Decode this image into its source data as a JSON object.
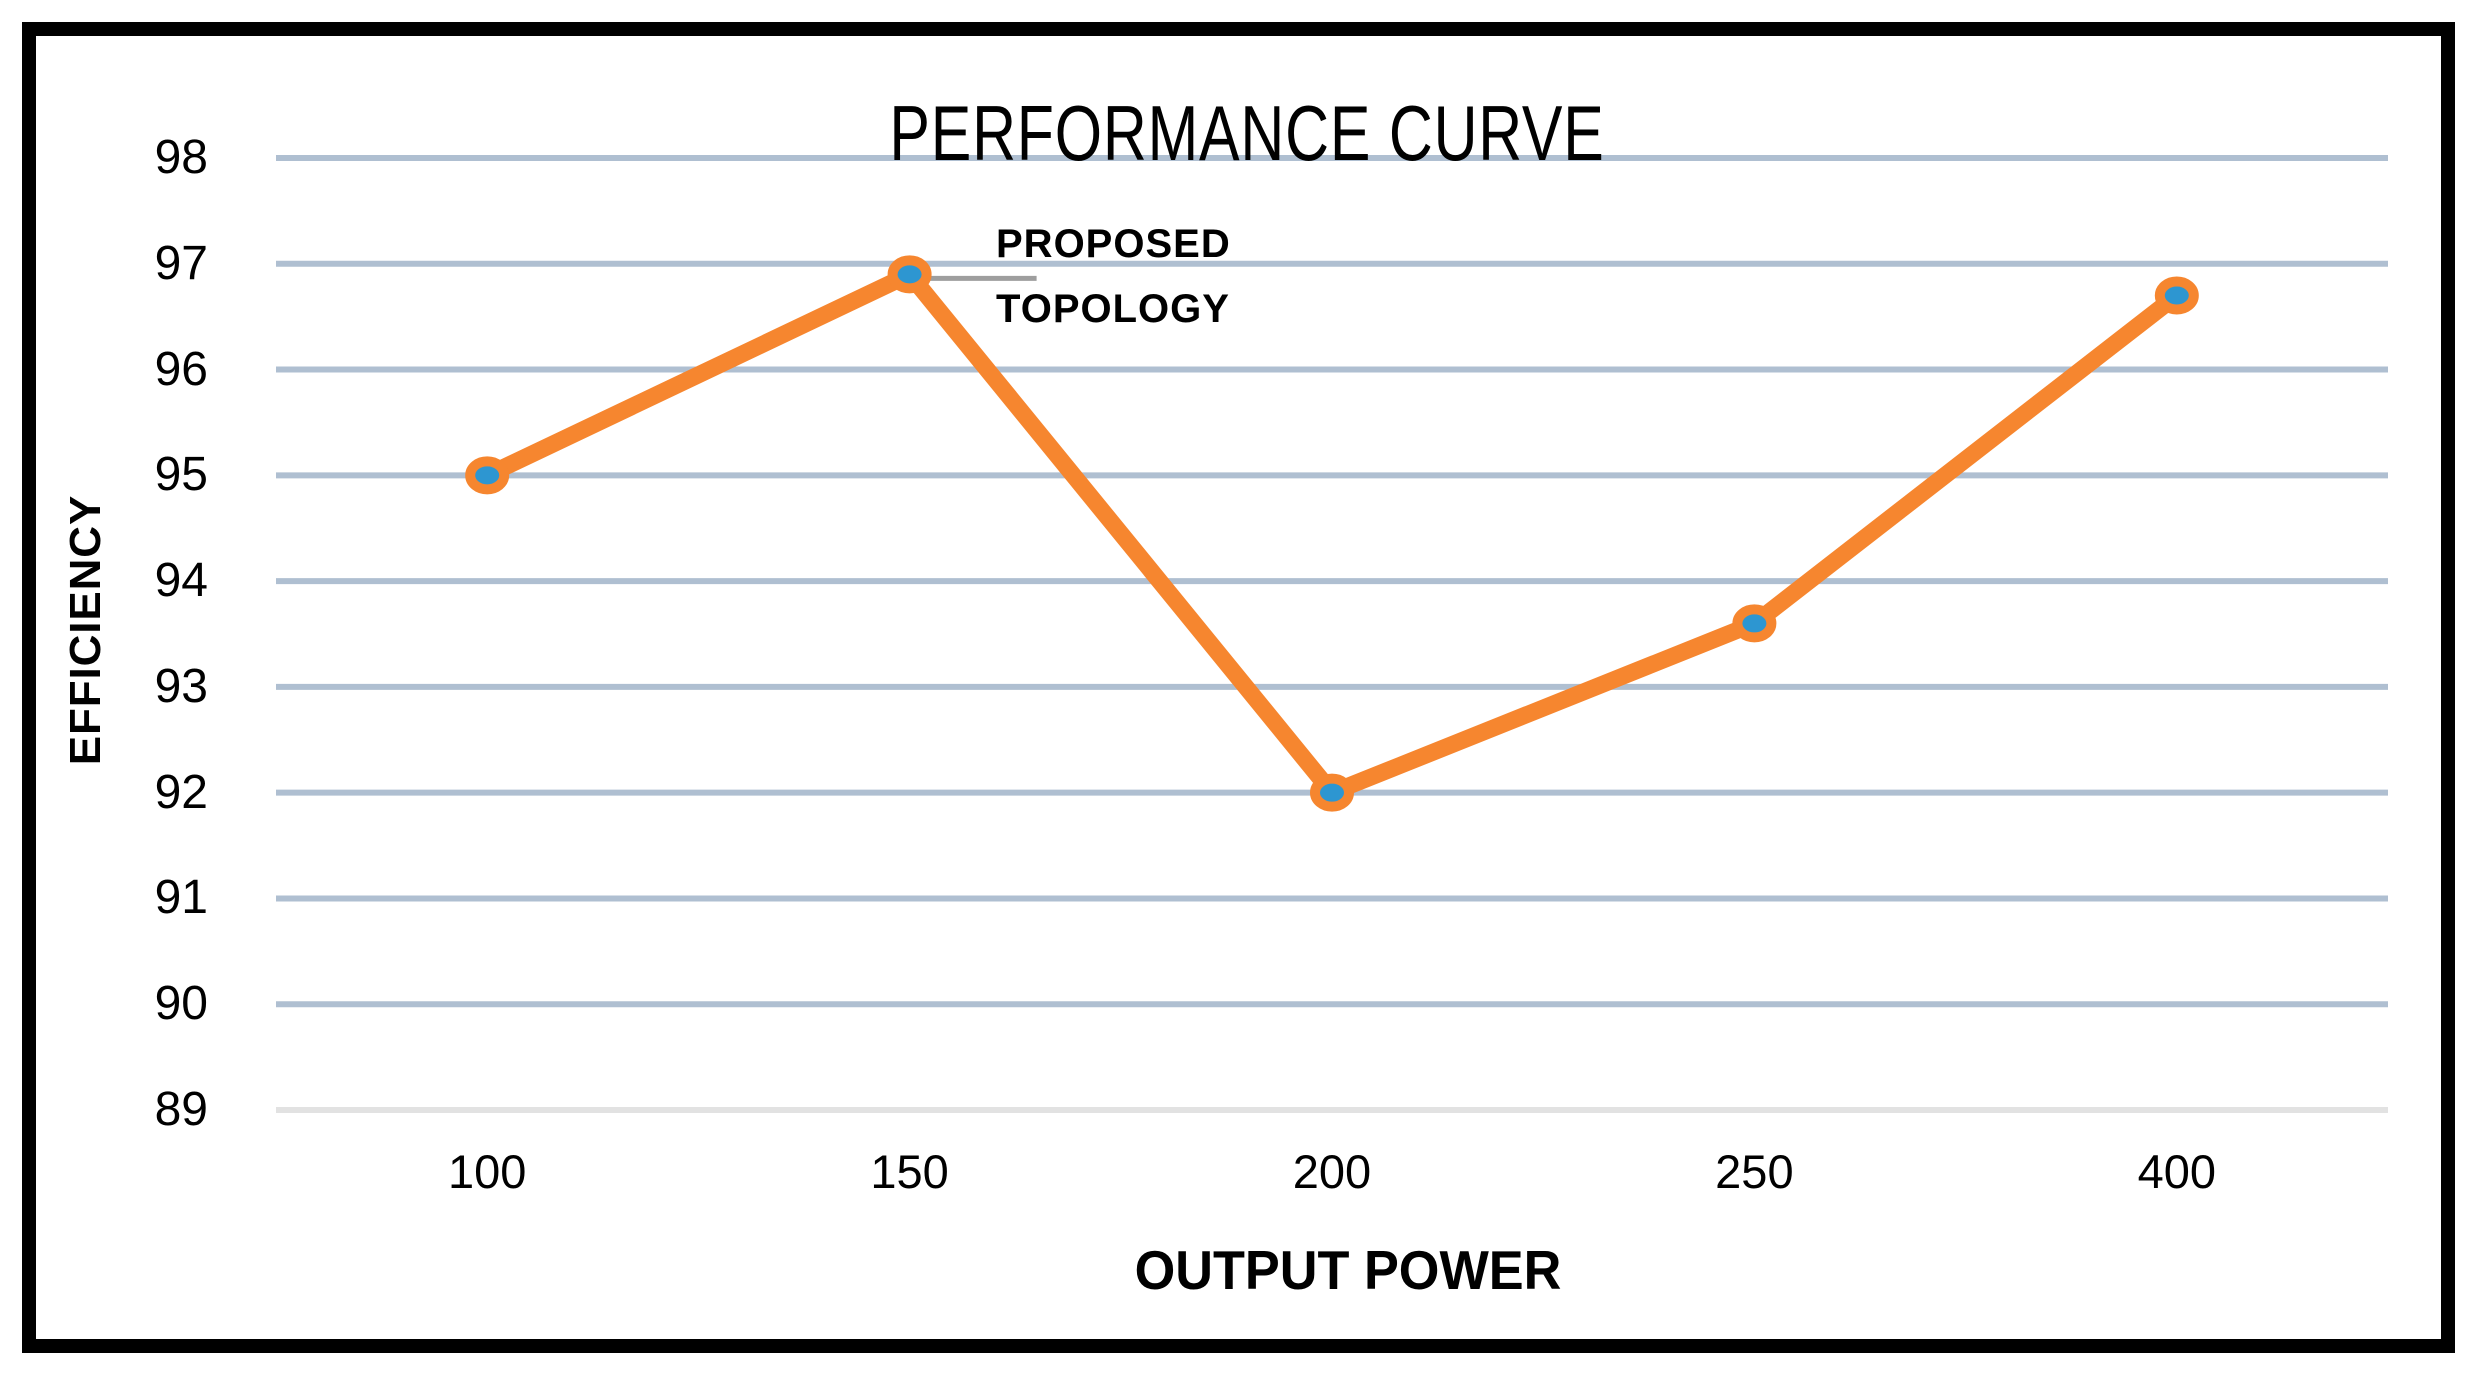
{
  "chart_data": {
    "type": "line",
    "title": "PERFORMANCE CURVE",
    "categories": [
      "100",
      "150",
      "200",
      "250",
      "400"
    ],
    "series": [
      {
        "name": "PROPOSED TOPOLOGY",
        "values": [
          95,
          96.9,
          92,
          93.6,
          96.7
        ]
      }
    ],
    "xlabel": "OUTPUT POWER",
    "ylabel": "EFFICIENCY",
    "ylim": [
      89,
      98
    ],
    "yticks": [
      89,
      90,
      91,
      92,
      93,
      94,
      95,
      96,
      97,
      98
    ],
    "grid": "horizontal-only",
    "legend_position": "none",
    "annotation": {
      "text": "PROPOSED TOPOLOGY",
      "target_category": "150",
      "target_value": 96.9
    },
    "marker": "circle"
  },
  "annotation_lines": {
    "line1": "PROPOSED",
    "line2": "TOPOLOGY"
  },
  "colors": {
    "series_line": "#F6862F",
    "marker_fill": "#2D96D1",
    "marker_ring": "#F6862F",
    "gridline": "#AFBFD1",
    "baseline_gridline": "#E2E2E2",
    "leader_line": "#9E9E9E",
    "text": "#000000",
    "border": "#000000",
    "background": "#FFFFFF"
  }
}
